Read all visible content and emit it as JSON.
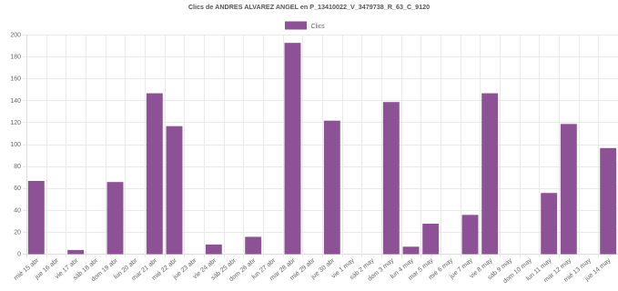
{
  "chart_data": {
    "type": "bar",
    "title": "Clics de ANDRES ALVAREZ ANGEL  en P_13410022_V_3479738_R_63_C_9120",
    "legend": {
      "position": "top",
      "entries": [
        {
          "label": "Clics",
          "color": "#8d5295"
        }
      ]
    },
    "grid": true,
    "ylim": [
      0,
      200
    ],
    "yticks": [
      0,
      20,
      40,
      60,
      80,
      100,
      120,
      140,
      160,
      180,
      200
    ],
    "categories": [
      "mié 15 abr",
      "jue 16 abr",
      "vie 17 abr",
      "sáb 18 abr",
      "dom 19 abr",
      "lun 20 abr",
      "mar 21 abr",
      "mié 22 abr",
      "jue 23 abr",
      "vie 24 abr",
      "sáb 25 abr",
      "dom 26 abr",
      "lun 27 abr",
      "mar 28 abr",
      "mié 29 abr",
      "jue 30 abr",
      "vie 1 may",
      "sáb 2 may",
      "dom 3 may",
      "lun 4 may",
      "mar 5 may",
      "mié 6 may",
      "jue 7 may",
      "vie 8 may",
      "sáb 9 may",
      "dom 10 may",
      "lun 11 may",
      "mar 12 may",
      "mié 13 may",
      "jue 14 may"
    ],
    "series": [
      {
        "name": "Clics",
        "color": "#8d5295",
        "values": [
          66,
          0,
          3,
          0,
          65,
          0,
          146,
          116,
          0,
          8,
          0,
          15,
          0,
          192,
          0,
          121,
          0,
          0,
          138,
          6,
          27,
          0,
          35,
          146,
          0,
          0,
          55,
          118,
          0,
          96
        ]
      }
    ]
  }
}
